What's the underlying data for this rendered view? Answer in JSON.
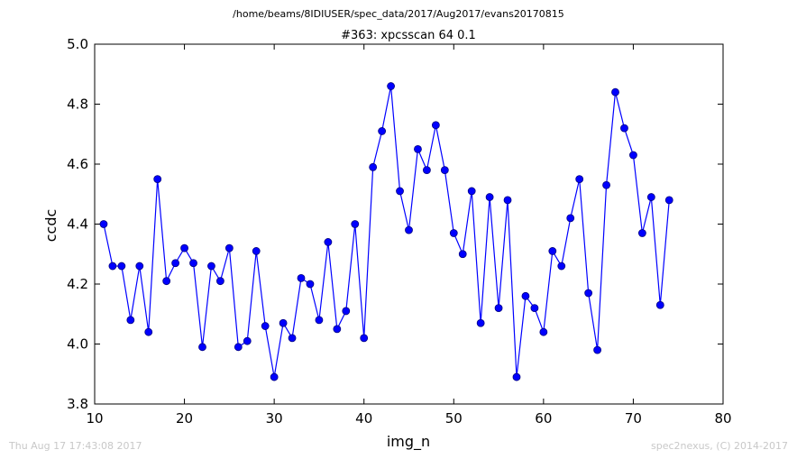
{
  "page": {
    "suptitle": "/home/beams/8IDIUSER/spec_data/2017/Aug2017/evans20170815",
    "footer_left": "Thu Aug 17 17:43:08 2017",
    "footer_right": "spec2nexus, (C) 2014-2017"
  },
  "colors": {
    "series": "#0000ff",
    "marker_fill": "#0000ff",
    "marker_edge": "#000080",
    "axes": "#000000",
    "footer_text": "#c8c8c8"
  },
  "chart_data": {
    "type": "line",
    "title": "#363: xpcsscan 64 0.1",
    "xlabel": "img_n",
    "ylabel": "ccdc",
    "xlim": [
      10,
      80
    ],
    "ylim": [
      3.8,
      5.0
    ],
    "xticks": [
      "10",
      "20",
      "30",
      "40",
      "50",
      "60",
      "70",
      "80"
    ],
    "yticks": [
      "3.8",
      "4.0",
      "4.2",
      "4.4",
      "4.6",
      "4.8",
      "5.0"
    ],
    "grid": false,
    "series": [
      {
        "marker": "circle",
        "x": [
          11,
          12,
          13,
          14,
          15,
          16,
          17,
          18,
          19,
          20,
          21,
          22,
          23,
          24,
          25,
          26,
          27,
          28,
          29,
          30,
          31,
          32,
          33,
          34,
          35,
          36,
          37,
          38,
          39,
          40,
          41,
          42,
          43,
          44,
          45,
          46,
          47,
          48,
          49,
          50,
          51,
          52,
          53,
          54,
          55,
          56,
          57,
          58,
          59,
          60,
          61,
          62,
          63,
          64,
          65,
          66,
          67,
          68,
          69,
          70,
          71,
          72,
          73,
          74
        ],
        "y": [
          4.4,
          4.26,
          4.26,
          4.08,
          4.26,
          4.04,
          4.55,
          4.21,
          4.27,
          4.32,
          4.27,
          3.99,
          4.26,
          4.21,
          4.32,
          3.99,
          4.01,
          4.31,
          4.06,
          3.89,
          4.07,
          4.02,
          4.22,
          4.2,
          4.08,
          4.34,
          4.05,
          4.11,
          4.4,
          4.02,
          4.59,
          4.71,
          4.86,
          4.51,
          4.38,
          4.65,
          4.58,
          4.73,
          4.58,
          4.37,
          4.3,
          4.51,
          4.07,
          4.49,
          4.12,
          4.48,
          3.89,
          4.16,
          4.12,
          4.04,
          4.31,
          4.26,
          4.42,
          4.55,
          4.17,
          3.98,
          4.53,
          4.84,
          4.72,
          4.63,
          4.37,
          4.49,
          4.13,
          4.48
        ]
      }
    ]
  }
}
